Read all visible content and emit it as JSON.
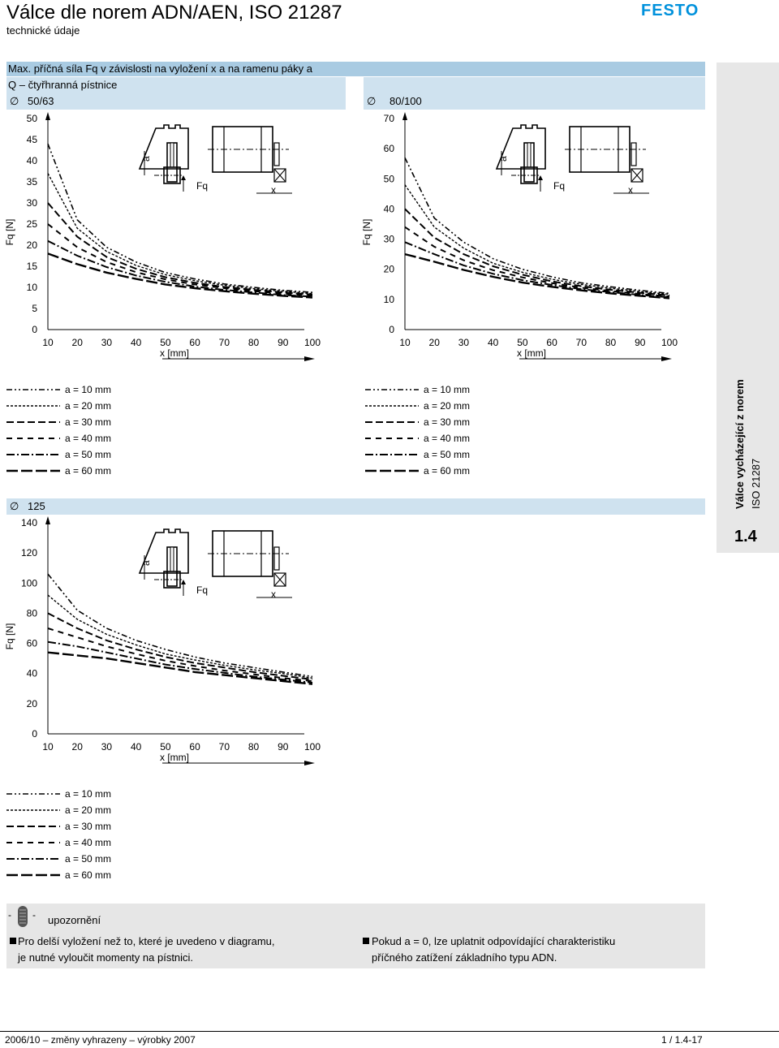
{
  "header": {
    "title": "Válce dle norem ADN/AEN, ISO 21287",
    "subtitle": "technické údaje",
    "logo_text": "FESTO",
    "logo_color": "#0091dc"
  },
  "section": {
    "title": "Max. příčná síla Fq v závislosti na vyložení x a na ramenu páky a",
    "variant": "Q – čtyřhranná pístnice",
    "size_a": "50/63",
    "size_b": "80/100",
    "size_c": "125",
    "diameter_symbol": "∅"
  },
  "sidebar": {
    "title": "Válce vycházející z norem",
    "subtitle": "ISO 21287",
    "chapter": "1.4"
  },
  "charts": {
    "y_label": "Fq [N]",
    "x_label": "x [mm]",
    "sketch_a_label": "a",
    "sketch_fq_label": "Fq",
    "sketch_x_label": "x"
  },
  "legend_labels": [
    "a = 10 mm",
    "a = 20 mm",
    "a = 30 mm",
    "a = 40 mm",
    "a = 50 mm",
    "a = 60 mm"
  ],
  "chart_data": [
    {
      "type": "line",
      "title": "∅ 50/63",
      "xlabel": "x [mm]",
      "ylabel": "Fq [N]",
      "xlim": [
        10,
        100
      ],
      "ylim": [
        0,
        50
      ],
      "x_ticks": [
        10,
        20,
        30,
        40,
        50,
        60,
        70,
        80,
        90,
        100
      ],
      "y_ticks": [
        0,
        5,
        10,
        15,
        20,
        25,
        30,
        35,
        40,
        45,
        50
      ],
      "x": [
        10,
        20,
        30,
        40,
        50,
        60,
        70,
        80,
        90,
        100
      ],
      "series": [
        {
          "name": "a = 10 mm",
          "values": [
            44,
            26,
            19.5,
            16,
            13.5,
            12,
            10.8,
            10,
            9.3,
            8.8
          ]
        },
        {
          "name": "a = 20 mm",
          "values": [
            37,
            24,
            18.5,
            15.2,
            13,
            11.6,
            10.5,
            9.7,
            9.1,
            8.5
          ]
        },
        {
          "name": "a = 30 mm",
          "values": [
            30,
            22,
            17.2,
            14.4,
            12.4,
            11.1,
            10.1,
            9.4,
            8.8,
            8.3
          ]
        },
        {
          "name": "a = 40 mm",
          "values": [
            25,
            19.5,
            16,
            13.6,
            11.9,
            10.7,
            9.8,
            9.1,
            8.5,
            8.0
          ]
        },
        {
          "name": "a = 50 mm",
          "values": [
            21,
            17.5,
            14.8,
            12.8,
            11.3,
            10.2,
            9.4,
            8.8,
            8.2,
            7.8
          ]
        },
        {
          "name": "a = 60 mm",
          "values": [
            18,
            15.5,
            13.5,
            12,
            10.7,
            9.8,
            9.1,
            8.5,
            8.0,
            7.6
          ]
        }
      ]
    },
    {
      "type": "line",
      "title": "∅ 80/100",
      "xlabel": "x [mm]",
      "ylabel": "Fq [N]",
      "xlim": [
        10,
        100
      ],
      "ylim": [
        0,
        70
      ],
      "x_ticks": [
        10,
        20,
        30,
        40,
        50,
        60,
        70,
        80,
        90,
        100
      ],
      "y_ticks": [
        0,
        10,
        20,
        30,
        40,
        50,
        60,
        70
      ],
      "x": [
        10,
        20,
        30,
        40,
        50,
        60,
        70,
        80,
        90,
        100
      ],
      "series": [
        {
          "name": "a = 10 mm",
          "values": [
            57,
            37,
            29,
            23.5,
            20,
            17.5,
            15.5,
            14.2,
            13,
            12
          ]
        },
        {
          "name": "a = 20 mm",
          "values": [
            48,
            34,
            27,
            22,
            19,
            16.7,
            15,
            13.7,
            12.6,
            11.7
          ]
        },
        {
          "name": "a = 30 mm",
          "values": [
            40,
            30.5,
            25,
            21,
            18.2,
            16,
            14.4,
            13.2,
            12.2,
            11.3
          ]
        },
        {
          "name": "a = 40 mm",
          "values": [
            34,
            27.5,
            23,
            19.7,
            17.3,
            15.4,
            13.9,
            12.8,
            11.8,
            11.0
          ]
        },
        {
          "name": "a = 50 mm",
          "values": [
            29,
            25,
            21.3,
            18.5,
            16.4,
            14.8,
            13.4,
            12.4,
            11.5,
            10.7
          ]
        },
        {
          "name": "a = 60 mm",
          "values": [
            25,
            22.5,
            19.8,
            17.5,
            15.6,
            14.2,
            13,
            12,
            11.2,
            10.4
          ]
        }
      ]
    },
    {
      "type": "line",
      "title": "∅ 125",
      "xlabel": "x [mm]",
      "ylabel": "Fq [N]",
      "xlim": [
        10,
        100
      ],
      "ylim": [
        0,
        140
      ],
      "x_ticks": [
        10,
        20,
        30,
        40,
        50,
        60,
        70,
        80,
        90,
        100
      ],
      "y_ticks": [
        0,
        20,
        40,
        60,
        80,
        100,
        120,
        140
      ],
      "x": [
        10,
        20,
        30,
        40,
        50,
        60,
        70,
        80,
        90,
        100
      ],
      "series": [
        {
          "name": "a = 10 mm",
          "values": [
            106,
            82,
            70,
            62,
            56,
            51,
            47,
            44,
            41,
            38
          ]
        },
        {
          "name": "a = 20 mm",
          "values": [
            92,
            76,
            66,
            59,
            53,
            49,
            45.5,
            42.5,
            40,
            37
          ]
        },
        {
          "name": "a = 30 mm",
          "values": [
            80,
            70,
            62,
            56,
            51,
            47,
            44,
            41,
            38.5,
            36
          ]
        },
        {
          "name": "a = 40 mm",
          "values": [
            70,
            64,
            58,
            53,
            48.5,
            45,
            42,
            39.5,
            37,
            35
          ]
        },
        {
          "name": "a = 50 mm",
          "values": [
            61,
            58,
            54,
            50,
            46,
            43,
            40.5,
            38,
            36,
            34
          ]
        },
        {
          "name": "a = 60 mm",
          "values": [
            54,
            52,
            50,
            47,
            44,
            41,
            39,
            37,
            35,
            33
          ]
        }
      ]
    }
  ],
  "notes": {
    "warning_label": "upozornění",
    "left_line1": "Pro delší vyložení než to, které je uvedeno v diagramu,",
    "left_line2": "je nutné vyloučit momenty na pístnici.",
    "right_line1": "Pokud a = 0, lze uplatnit odpovídající charakteristiku",
    "right_line2": "příčného zatížení základního typu ADN."
  },
  "footer": {
    "left": "2006/10 – změny vyhrazeny – výrobky 2007",
    "right": "1 / 1.4-17"
  }
}
